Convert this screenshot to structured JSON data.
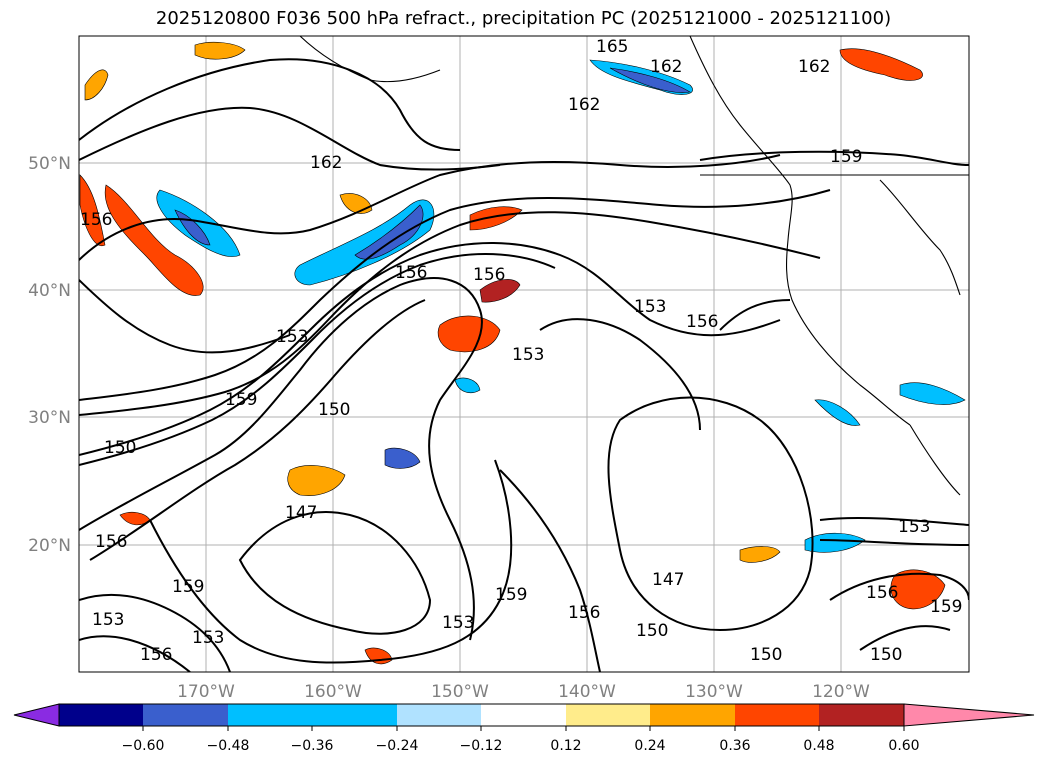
{
  "title": "2025120800 F036 500 hPa refract., precipitation PC (2025121000 - 2025121100)",
  "longitude_labels": [
    "170°W",
    "160°W",
    "150°W",
    "140°W",
    "130°W",
    "120°W"
  ],
  "latitude_labels": [
    "50°N",
    "40°N",
    "30°N",
    "20°N"
  ],
  "colorbar": {
    "colors": [
      "#8a2be2",
      "#00008b",
      "#3a5fcd",
      "#00bfff",
      "#b0e2ff",
      "#ffffff",
      "#ffec8b",
      "#ffa500",
      "#ff4500",
      "#b22222",
      "#ff88aa"
    ],
    "ticks": [
      "−0.60",
      "−0.48",
      "−0.36",
      "−0.24",
      "−0.12",
      "0.12",
      "0.24",
      "0.36",
      "0.48",
      "0.60"
    ]
  },
  "contour_labels": [
    "162",
    "162",
    "162",
    "162",
    "159",
    "159",
    "159",
    "159",
    "159",
    "156",
    "156",
    "156",
    "156",
    "156",
    "156",
    "156",
    "156",
    "153",
    "153",
    "153",
    "153",
    "153",
    "153",
    "153",
    "150",
    "150",
    "150",
    "150",
    "150",
    "147",
    "147",
    "165"
  ],
  "colors": {
    "land_edge": "#000000",
    "grid": "#b0b0b0",
    "axis_text": "#808080"
  }
}
